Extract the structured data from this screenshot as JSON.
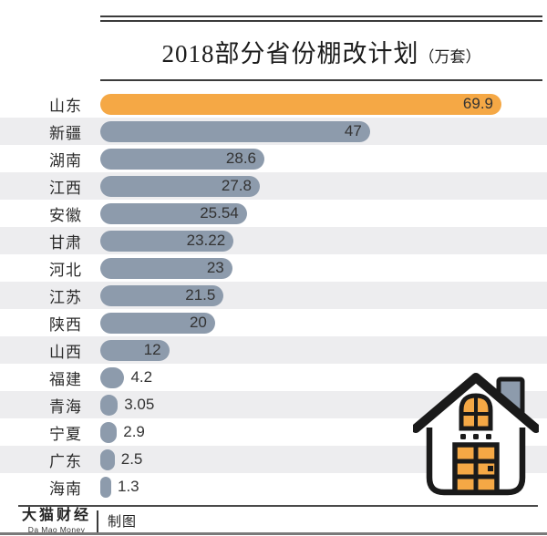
{
  "title": {
    "main": "2018部分省份棚改计划",
    "unit": "（万套）"
  },
  "chart_data": {
    "type": "bar",
    "orientation": "horizontal",
    "title": "2018部分省份棚改计划（万套）",
    "xlabel": "",
    "ylabel": "",
    "xlim": [
      0,
      70
    ],
    "grid": false,
    "legend": "none",
    "categories": [
      "山东",
      "新疆",
      "湖南",
      "江西",
      "安徽",
      "甘肃",
      "河北",
      "江苏",
      "陕西",
      "山西",
      "福建",
      "青海",
      "宁夏",
      "广东",
      "海南"
    ],
    "values": [
      69.9,
      47,
      28.6,
      27.8,
      25.54,
      23.22,
      23,
      21.5,
      20,
      12,
      4.2,
      3.05,
      2.9,
      2.5,
      1.3
    ],
    "value_labels": [
      "69.9",
      "47",
      "28.6",
      "27.8",
      "25.54",
      "23.22",
      "23",
      "21.5",
      "20",
      "12",
      "4.2",
      "3.05",
      "2.9",
      "2.5",
      "1.3"
    ],
    "highlight_index": 0,
    "colors": {
      "highlight": "#F5A845",
      "default": "#8D9BAC",
      "stripe": "#EDEDEF",
      "value_text": "#333333"
    }
  },
  "footer": {
    "brand_cn": "大猫财经",
    "brand_en": "Da Mao Money",
    "credit": "制图"
  },
  "decor": {
    "house": {
      "outline_color": "#1A1A1A",
      "chimney_color": "#8D9BAC",
      "accent_color": "#F5A845",
      "fill_color": "#FFFFFF"
    }
  }
}
